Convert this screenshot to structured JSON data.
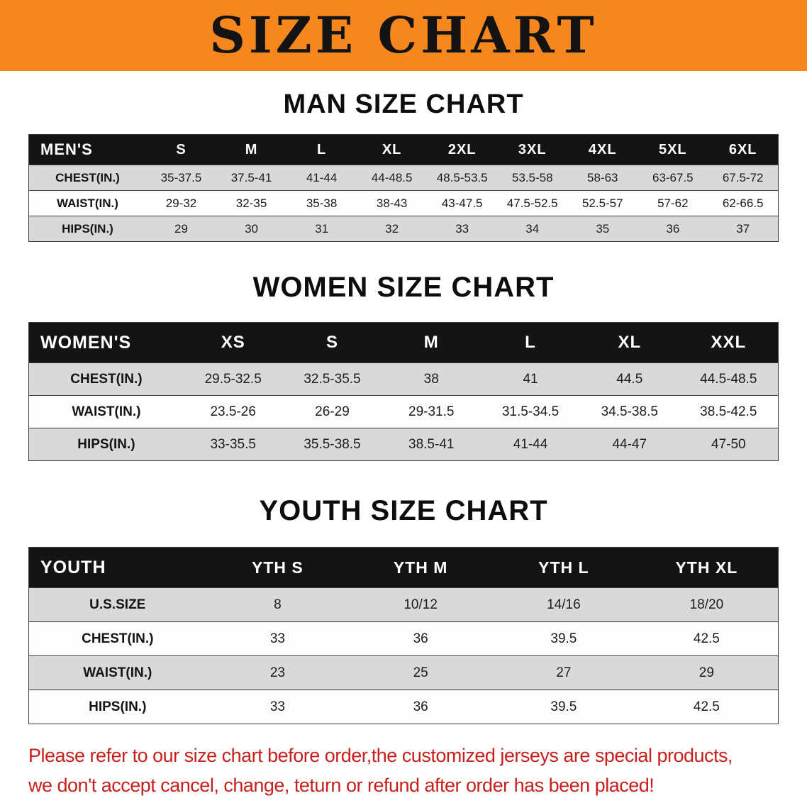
{
  "banner": {
    "title": "SIZE CHART"
  },
  "chart_data": [
    {
      "type": "table",
      "title": "MAN SIZE CHART",
      "columns": [
        "MEN'S",
        "S",
        "M",
        "L",
        "XL",
        "2XL",
        "3XL",
        "4XL",
        "5XL",
        "6XL"
      ],
      "rows": [
        [
          "CHEST(IN.)",
          "35-37.5",
          "37.5-41",
          "41-44",
          "44-48.5",
          "48.5-53.5",
          "53.5-58",
          "58-63",
          "63-67.5",
          "67.5-72"
        ],
        [
          "WAIST(IN.)",
          "29-32",
          "32-35",
          "35-38",
          "38-43",
          "43-47.5",
          "47.5-52.5",
          "52.5-57",
          "57-62",
          "62-66.5"
        ],
        [
          "HIPS(IN.)",
          "29",
          "30",
          "31",
          "32",
          "33",
          "34",
          "35",
          "36",
          "37"
        ]
      ]
    },
    {
      "type": "table",
      "title": "WOMEN SIZE CHART",
      "columns": [
        "WOMEN'S",
        "XS",
        "S",
        "M",
        "L",
        "XL",
        "XXL"
      ],
      "rows": [
        [
          "CHEST(IN.)",
          "29.5-32.5",
          "32.5-35.5",
          "38",
          "41",
          "44.5",
          "44.5-48.5"
        ],
        [
          "WAIST(IN.)",
          "23.5-26",
          "26-29",
          "29-31.5",
          "31.5-34.5",
          "34.5-38.5",
          "38.5-42.5"
        ],
        [
          "HIPS(IN.)",
          "33-35.5",
          "35.5-38.5",
          "38.5-41",
          "41-44",
          "44-47",
          "47-50"
        ]
      ]
    },
    {
      "type": "table",
      "title": "YOUTH SIZE CHART",
      "columns": [
        "YOUTH",
        "YTH S",
        "YTH M",
        "YTH L",
        "YTH XL"
      ],
      "rows": [
        [
          "U.S.SIZE",
          "8",
          "10/12",
          "14/16",
          "18/20"
        ],
        [
          "CHEST(IN.)",
          "33",
          "36",
          "39.5",
          "42.5"
        ],
        [
          "WAIST(IN.)",
          "23",
          "25",
          "27",
          "29"
        ],
        [
          "HIPS(IN.)",
          "33",
          "36",
          "39.5",
          "42.5"
        ]
      ]
    }
  ],
  "disclaimer": {
    "lines": [
      "Please refer to our size chart before order,the customized jerseys are special products,",
      "we don't accept cancel, change, teturn or refund after order has been placed!"
    ]
  },
  "colors": {
    "banner_bg": "#F6861E",
    "table_header_bg": "#141414",
    "row_shaded": "#D9D9D9",
    "row_plain": "#FDFDFD",
    "disclaimer_red": "#C8201D",
    "text": "#111111"
  }
}
